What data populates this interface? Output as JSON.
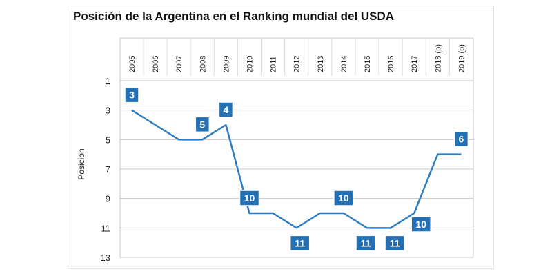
{
  "chart_data": {
    "type": "line",
    "title": "Posición de la Argentina en el Ranking mundial del USDA",
    "xlabel": "",
    "ylabel": "Posición",
    "categories": [
      "2005",
      "2006",
      "2007",
      "2008",
      "2009",
      "2010",
      "2011",
      "2012",
      "2013",
      "2014",
      "2015",
      "2016",
      "2017",
      "2018 (p)",
      "2019 (p)"
    ],
    "series": [
      {
        "values": [
          3,
          4,
          5,
          5,
          4,
          10,
          10,
          11,
          10,
          10,
          11,
          11,
          10,
          6,
          6
        ]
      }
    ],
    "data_labels": [
      {
        "category": "2005",
        "value": 3,
        "text": "3"
      },
      {
        "category": "2008",
        "value": 5,
        "text": "5"
      },
      {
        "category": "2009",
        "value": 4,
        "text": "4"
      },
      {
        "category": "2010",
        "value": 10,
        "text": "10"
      },
      {
        "category": "2012",
        "value": 11,
        "text": "11"
      },
      {
        "category": "2014",
        "value": 10,
        "text": "10"
      },
      {
        "category": "2015",
        "value": 11,
        "text": "11"
      },
      {
        "category": "2016",
        "value": 11,
        "text": "11"
      },
      {
        "category": "2017",
        "value": 10,
        "text": "10"
      },
      {
        "category": "2019 (p)",
        "value": 6,
        "text": "6"
      }
    ],
    "y_ticks": [
      1,
      3,
      5,
      7,
      9,
      11,
      13
    ],
    "ylim": [
      1,
      13
    ],
    "y_inverted": true,
    "x_axis_position": "top",
    "grid": true,
    "colors": {
      "line": "#2e7cc2",
      "label_bg": "#2470b4",
      "grid": "#c8c8c8"
    }
  }
}
